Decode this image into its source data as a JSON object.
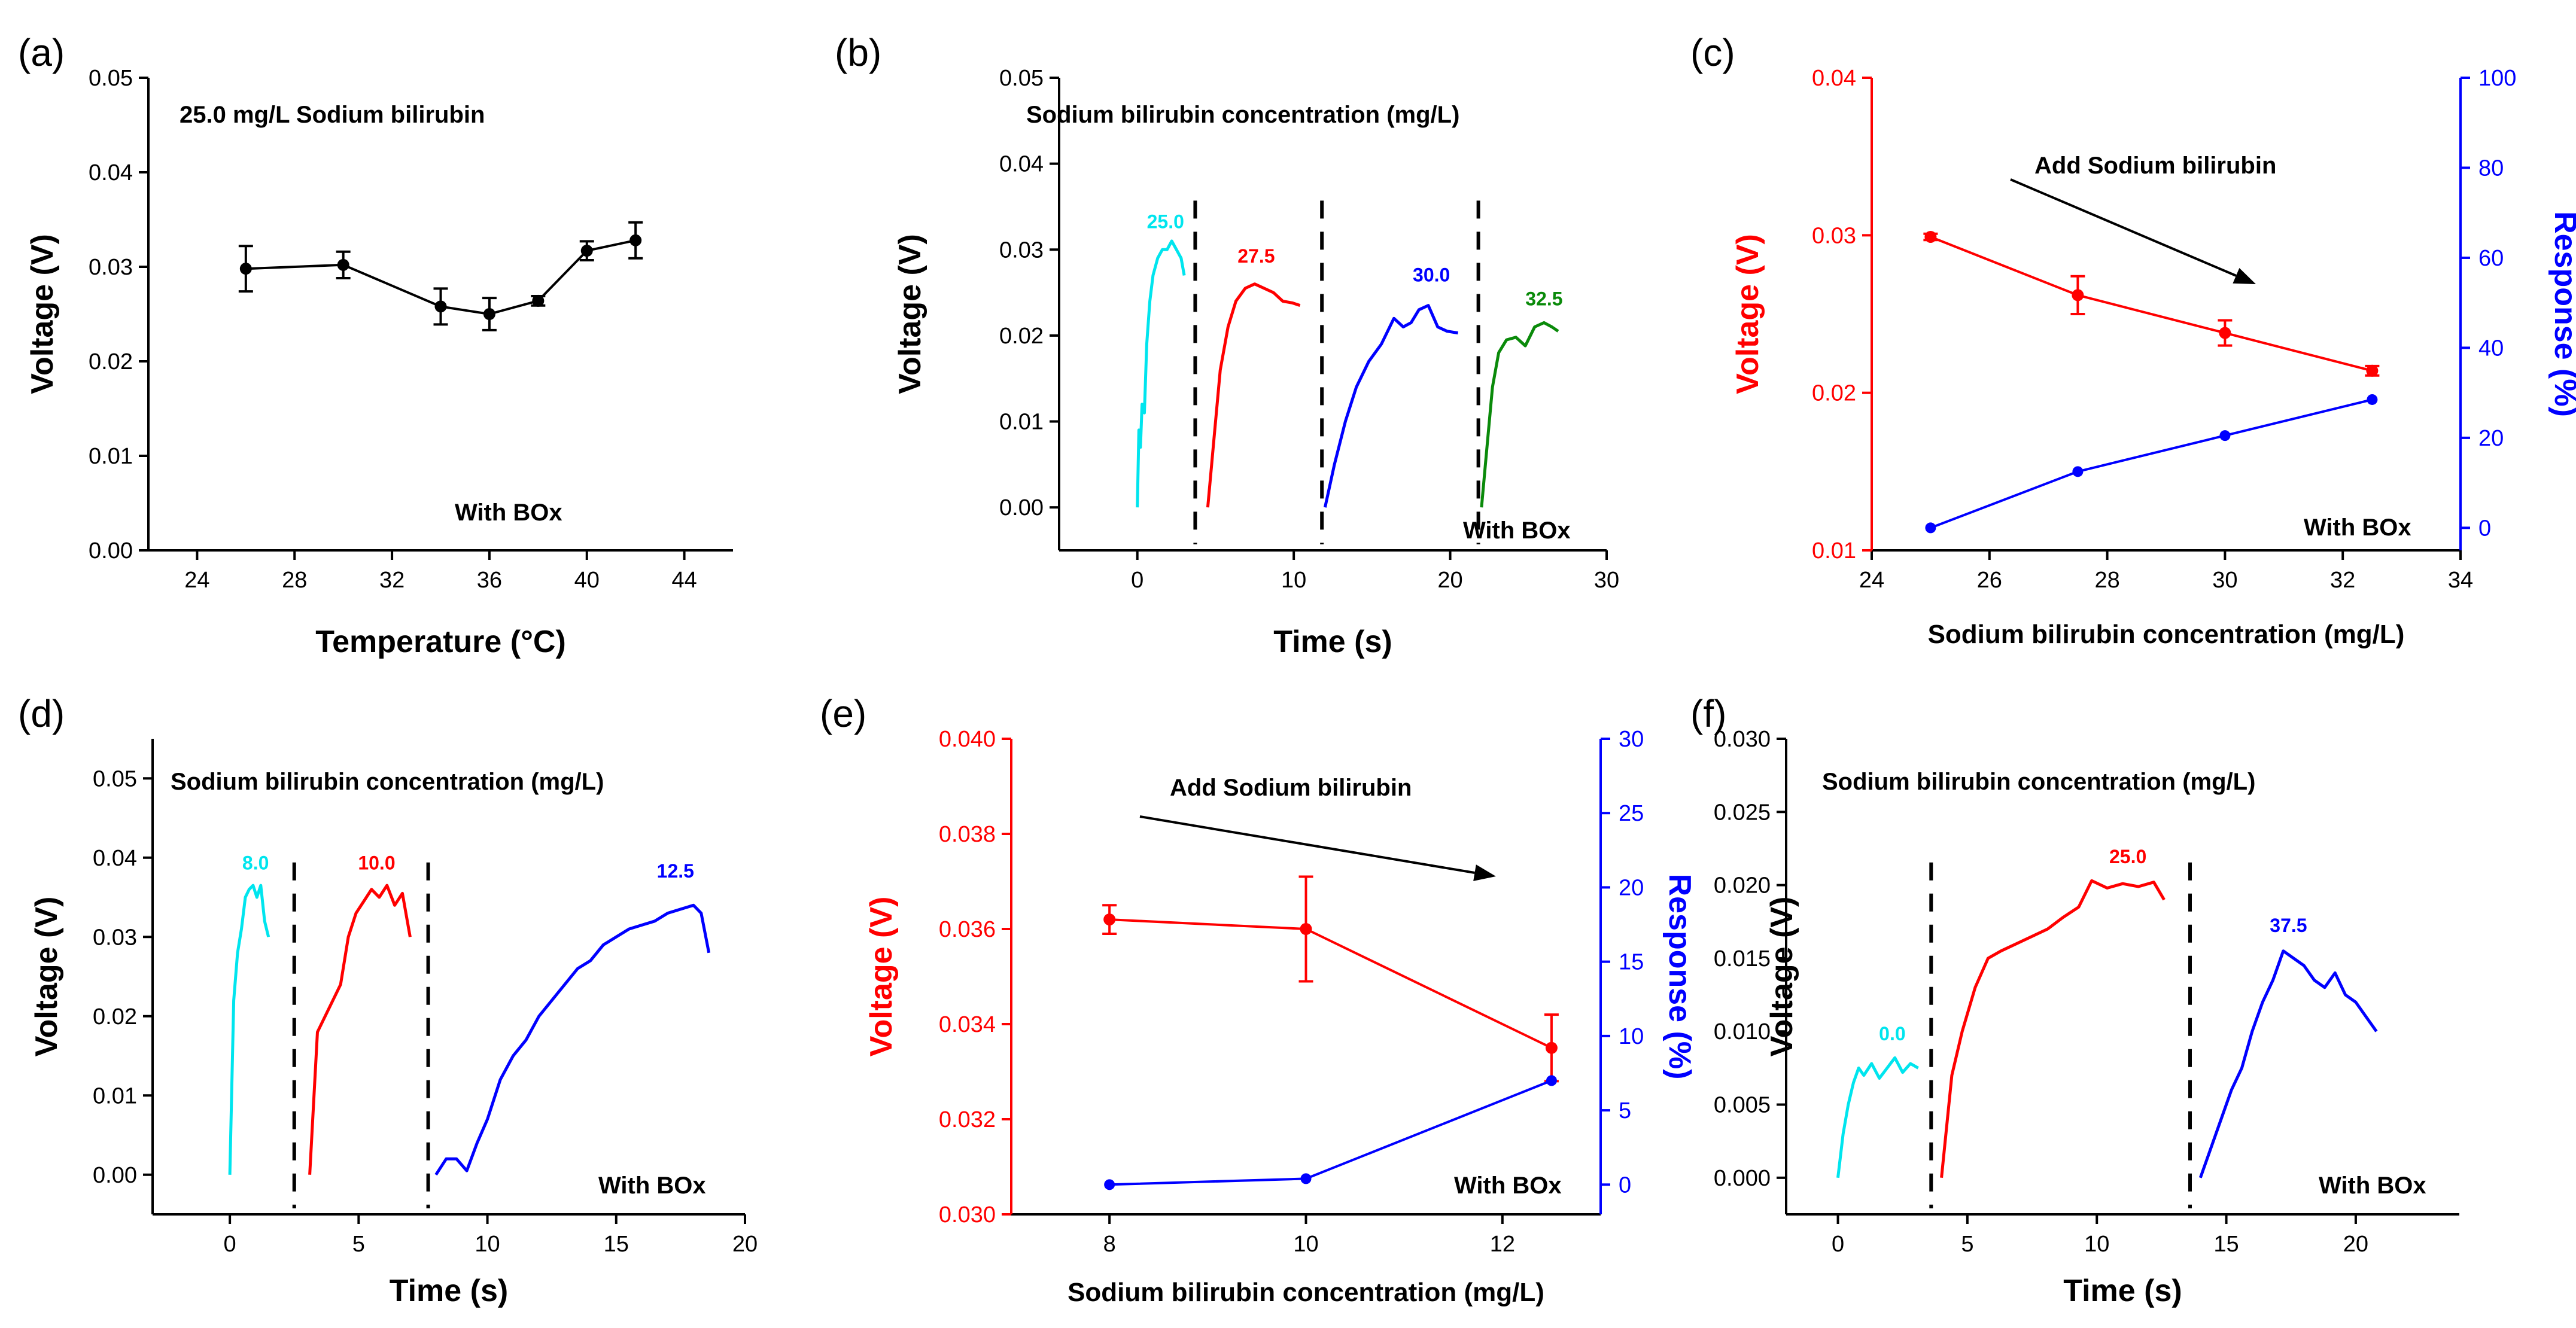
{
  "chart_data": [
    {
      "panel": "(a)",
      "type": "line",
      "title": "25.0 mg/L Sodium bilirubin",
      "note": "With BOx",
      "xlabel": "Temperature (°C)",
      "ylabel": "Voltage (V)",
      "xlim": [
        22,
        46
      ],
      "ylim": [
        0,
        0.05
      ],
      "xticks": [
        24,
        28,
        32,
        36,
        40,
        44
      ],
      "yticks": [
        0.0,
        0.01,
        0.02,
        0.03,
        0.04,
        0.05
      ],
      "ytick_labels": [
        "0.00",
        "0.01",
        "0.02",
        "0.03",
        "0.04",
        "0.05"
      ],
      "series": [
        {
          "name": "voltage",
          "color": "#000000",
          "x": [
            26,
            30,
            34,
            36,
            38,
            40,
            42
          ],
          "y": [
            0.0298,
            0.0302,
            0.0258,
            0.025,
            0.0264,
            0.0317,
            0.0328
          ],
          "err": [
            0.0024,
            0.0014,
            0.0019,
            0.0017,
            0.0005,
            0.001,
            0.0019
          ]
        }
      ]
    },
    {
      "panel": "(b)",
      "type": "line",
      "title": "Sodium bilirubin concentration (mg/L)",
      "note": "With BOx",
      "xlabel": "Time (s)",
      "ylabel": "Voltage (V)",
      "xlim": [
        -5,
        30
      ],
      "ylim": [
        -0.005,
        0.05
      ],
      "xticks": [
        0,
        10,
        20,
        30
      ],
      "yticks": [
        0.0,
        0.01,
        0.02,
        0.03,
        0.04,
        0.05
      ],
      "ytick_labels": [
        "0.00",
        "0.01",
        "0.02",
        "0.03",
        "0.04",
        "0.05"
      ],
      "dividers": [
        3.7,
        11.8,
        21.8
      ],
      "series": [
        {
          "name": "25.0",
          "color": "#00e5ee",
          "x": [
            0,
            0.1,
            0.2,
            0.3,
            0.45,
            0.6,
            0.8,
            1.0,
            1.3,
            1.6,
            1.9,
            2.2,
            2.5,
            2.8,
            3.0
          ],
          "y": [
            0.0,
            0.009,
            0.007,
            0.012,
            0.011,
            0.019,
            0.024,
            0.027,
            0.029,
            0.03,
            0.03,
            0.031,
            0.03,
            0.029,
            0.027
          ],
          "label_x": 1.8,
          "label_y": 0.0325
        },
        {
          "name": "27.5",
          "color": "#ff0000",
          "x": [
            4.5,
            4.9,
            5.3,
            5.8,
            6.3,
            6.9,
            7.5,
            8.1,
            8.7,
            9.3,
            9.9,
            10.4
          ],
          "y": [
            0.0,
            0.008,
            0.016,
            0.021,
            0.024,
            0.0255,
            0.026,
            0.0255,
            0.025,
            0.024,
            0.0238,
            0.0235
          ],
          "label_x": 7.6,
          "label_y": 0.0285
        },
        {
          "name": "30.0",
          "color": "#0000ff",
          "x": [
            12.0,
            12.6,
            13.3,
            14.0,
            14.8,
            15.6,
            16.4,
            17.0,
            17.5,
            18.0,
            18.6,
            19.2,
            19.8,
            20.5
          ],
          "y": [
            0.0,
            0.005,
            0.01,
            0.014,
            0.017,
            0.019,
            0.022,
            0.021,
            0.0215,
            0.023,
            0.0235,
            0.021,
            0.0205,
            0.0203
          ],
          "label_x": 18.8,
          "label_y": 0.0263
        },
        {
          "name": "32.5",
          "color": "#0a8a0a",
          "x": [
            22.0,
            22.3,
            22.7,
            23.1,
            23.6,
            24.2,
            24.8,
            25.4,
            26.0,
            26.5,
            26.9
          ],
          "y": [
            0.0,
            0.006,
            0.014,
            0.018,
            0.0195,
            0.0198,
            0.0188,
            0.021,
            0.0215,
            0.021,
            0.0205
          ],
          "label_x": 26.0,
          "label_y": 0.0235
        }
      ]
    },
    {
      "panel": "(c)",
      "type": "line",
      "title": "Add Sodium bilirubin",
      "note": "With BOx",
      "xlabel": "Sodium bilirubin concentration (mg/L)",
      "ylabel": "Voltage (V)",
      "y2label": "Response (%)",
      "xlim": [
        24,
        34
      ],
      "ylim": [
        0.01,
        0.04
      ],
      "y2lim": [
        -5,
        100
      ],
      "xticks": [
        24,
        26,
        28,
        30,
        32,
        34
      ],
      "yticks": [
        0.01,
        0.02,
        0.03,
        0.04
      ],
      "ytick_labels": [
        "0.01",
        "0.02",
        "0.03",
        "0.04"
      ],
      "y2ticks": [
        0,
        20,
        40,
        60,
        80,
        100
      ],
      "series": [
        {
          "name": "Voltage",
          "axis": "left",
          "color": "#ff0000",
          "x": [
            25,
            27.5,
            30,
            32.5
          ],
          "y": [
            0.0299,
            0.0262,
            0.0238,
            0.0214
          ],
          "err": [
            0.0002,
            0.0012,
            0.0008,
            0.0003
          ]
        },
        {
          "name": "Response",
          "axis": "right",
          "color": "#0000ff",
          "x": [
            25,
            27.5,
            30,
            32.5
          ],
          "y": [
            0,
            12.5,
            20.5,
            28.5
          ]
        }
      ]
    },
    {
      "panel": "(d)",
      "type": "line",
      "title": "Sodium bilirubin concentration (mg/L)",
      "note": "With BOx",
      "xlabel": "Time (s)",
      "ylabel": "Voltage (V)",
      "xlim": [
        -3,
        20
      ],
      "ylim": [
        -0.005,
        0.055
      ],
      "xticks": [
        0,
        5,
        10,
        15,
        20
      ],
      "yticks": [
        0.0,
        0.01,
        0.02,
        0.03,
        0.04,
        0.05
      ],
      "ytick_labels": [
        "0.00",
        "0.01",
        "0.02",
        "0.03",
        "0.04",
        "0.05"
      ],
      "dividers": [
        2.5,
        7.7
      ],
      "series": [
        {
          "name": "8.0",
          "color": "#00e5ee",
          "x": [
            0,
            0.15,
            0.3,
            0.45,
            0.6,
            0.75,
            0.9,
            1.05,
            1.2,
            1.35,
            1.5
          ],
          "y": [
            0.0,
            0.022,
            0.028,
            0.031,
            0.035,
            0.036,
            0.0365,
            0.035,
            0.0365,
            0.032,
            0.03
          ],
          "label_x": 1.0,
          "label_y": 0.0385
        },
        {
          "name": "10.0",
          "color": "#ff0000",
          "x": [
            3.1,
            3.4,
            3.7,
            4.0,
            4.3,
            4.6,
            4.9,
            5.2,
            5.5,
            5.8,
            6.1,
            6.4,
            6.7,
            7.0
          ],
          "y": [
            0.0,
            0.018,
            0.02,
            0.022,
            0.024,
            0.03,
            0.033,
            0.0345,
            0.036,
            0.035,
            0.0365,
            0.034,
            0.0355,
            0.03
          ],
          "label_x": 5.7,
          "label_y": 0.0385
        },
        {
          "name": "12.5",
          "color": "#0000ff",
          "x": [
            8.0,
            8.4,
            8.8,
            9.2,
            9.6,
            10.0,
            10.5,
            11.0,
            11.5,
            12.0,
            12.5,
            13.0,
            13.5,
            14.0,
            14.5,
            15.0,
            15.5,
            16.0,
            16.5,
            17.0,
            17.5,
            18.0,
            18.3,
            18.6
          ],
          "y": [
            0.0,
            0.002,
            0.002,
            0.0005,
            0.004,
            0.007,
            0.012,
            0.015,
            0.017,
            0.02,
            0.022,
            0.024,
            0.026,
            0.027,
            0.029,
            0.03,
            0.031,
            0.0315,
            0.032,
            0.033,
            0.0335,
            0.034,
            0.033,
            0.028
          ],
          "label_x": 17.3,
          "label_y": 0.0375
        }
      ]
    },
    {
      "panel": "(e)",
      "type": "line",
      "title": "Add Sodium bilirubin",
      "note": "With BOx",
      "xlabel": "Sodium bilirubin concentration (mg/L)",
      "ylabel": "Voltage (V)",
      "y2label": "Response (%)",
      "xlim": [
        7,
        13
      ],
      "ylim": [
        0.03,
        0.04
      ],
      "y2lim": [
        -2,
        30
      ],
      "xticks": [
        8,
        10,
        12
      ],
      "yticks": [
        0.03,
        0.032,
        0.034,
        0.036,
        0.038,
        0.04
      ],
      "ytick_labels": [
        "0.030",
        "0.032",
        "0.034",
        "0.036",
        "0.038",
        "0.040"
      ],
      "y2ticks": [
        0,
        5,
        10,
        15,
        20,
        25,
        30
      ],
      "series": [
        {
          "name": "Voltage",
          "axis": "left",
          "color": "#ff0000",
          "x": [
            8,
            10,
            12.5
          ],
          "y": [
            0.0362,
            0.036,
            0.0335
          ],
          "err": [
            0.0003,
            0.0011,
            0.0007
          ]
        },
        {
          "name": "Response",
          "axis": "right",
          "color": "#0000ff",
          "x": [
            8,
            10,
            12.5
          ],
          "y": [
            0,
            0.4,
            7.0
          ]
        }
      ]
    },
    {
      "panel": "(f)",
      "type": "line",
      "title": "Sodium bilirubin concentration (mg/L)",
      "note": "With BOx",
      "xlabel": "Time (s)",
      "ylabel": "Voltage (V)",
      "xlim": [
        -2,
        24
      ],
      "ylim": [
        -0.0025,
        0.03
      ],
      "xticks": [
        0,
        5,
        10,
        15,
        20
      ],
      "yticks": [
        0.0,
        0.005,
        0.01,
        0.015,
        0.02,
        0.025,
        0.03
      ],
      "ytick_labels": [
        "0.000",
        "0.005",
        "0.010",
        "0.015",
        "0.020",
        "0.025",
        "0.030"
      ],
      "dividers": [
        3.6,
        13.6
      ],
      "series": [
        {
          "name": "0.0",
          "color": "#00e5ee",
          "x": [
            0,
            0.2,
            0.4,
            0.6,
            0.8,
            1.0,
            1.3,
            1.6,
            1.9,
            2.2,
            2.5,
            2.8,
            3.1
          ],
          "y": [
            0.0,
            0.003,
            0.005,
            0.0065,
            0.0075,
            0.007,
            0.0078,
            0.0068,
            0.0075,
            0.0082,
            0.0072,
            0.0078,
            0.0075
          ],
          "label_x": 2.1,
          "label_y": 0.0094
        },
        {
          "name": "25.0",
          "color": "#ff0000",
          "x": [
            4.0,
            4.4,
            4.8,
            5.3,
            5.8,
            6.3,
            6.9,
            7.5,
            8.1,
            8.7,
            9.3,
            9.8,
            10.4,
            11.0,
            11.6,
            12.2,
            12.6
          ],
          "y": [
            0.0,
            0.007,
            0.01,
            0.013,
            0.015,
            0.0155,
            0.016,
            0.0165,
            0.017,
            0.0178,
            0.0185,
            0.0203,
            0.0198,
            0.0201,
            0.0199,
            0.0202,
            0.019
          ],
          "label_x": 11.2,
          "label_y": 0.0215
        },
        {
          "name": "37.5",
          "color": "#0000ff",
          "x": [
            14.0,
            14.4,
            14.8,
            15.2,
            15.6,
            16.0,
            16.4,
            16.8,
            17.2,
            17.6,
            18.0,
            18.4,
            18.8,
            19.2,
            19.6,
            20.0,
            20.4,
            20.8
          ],
          "y": [
            0.0,
            0.002,
            0.004,
            0.006,
            0.0075,
            0.01,
            0.012,
            0.0135,
            0.0155,
            0.015,
            0.0145,
            0.0135,
            0.013,
            0.014,
            0.0125,
            0.012,
            0.011,
            0.01
          ],
          "label_x": 17.4,
          "label_y": 0.0168
        }
      ]
    }
  ]
}
